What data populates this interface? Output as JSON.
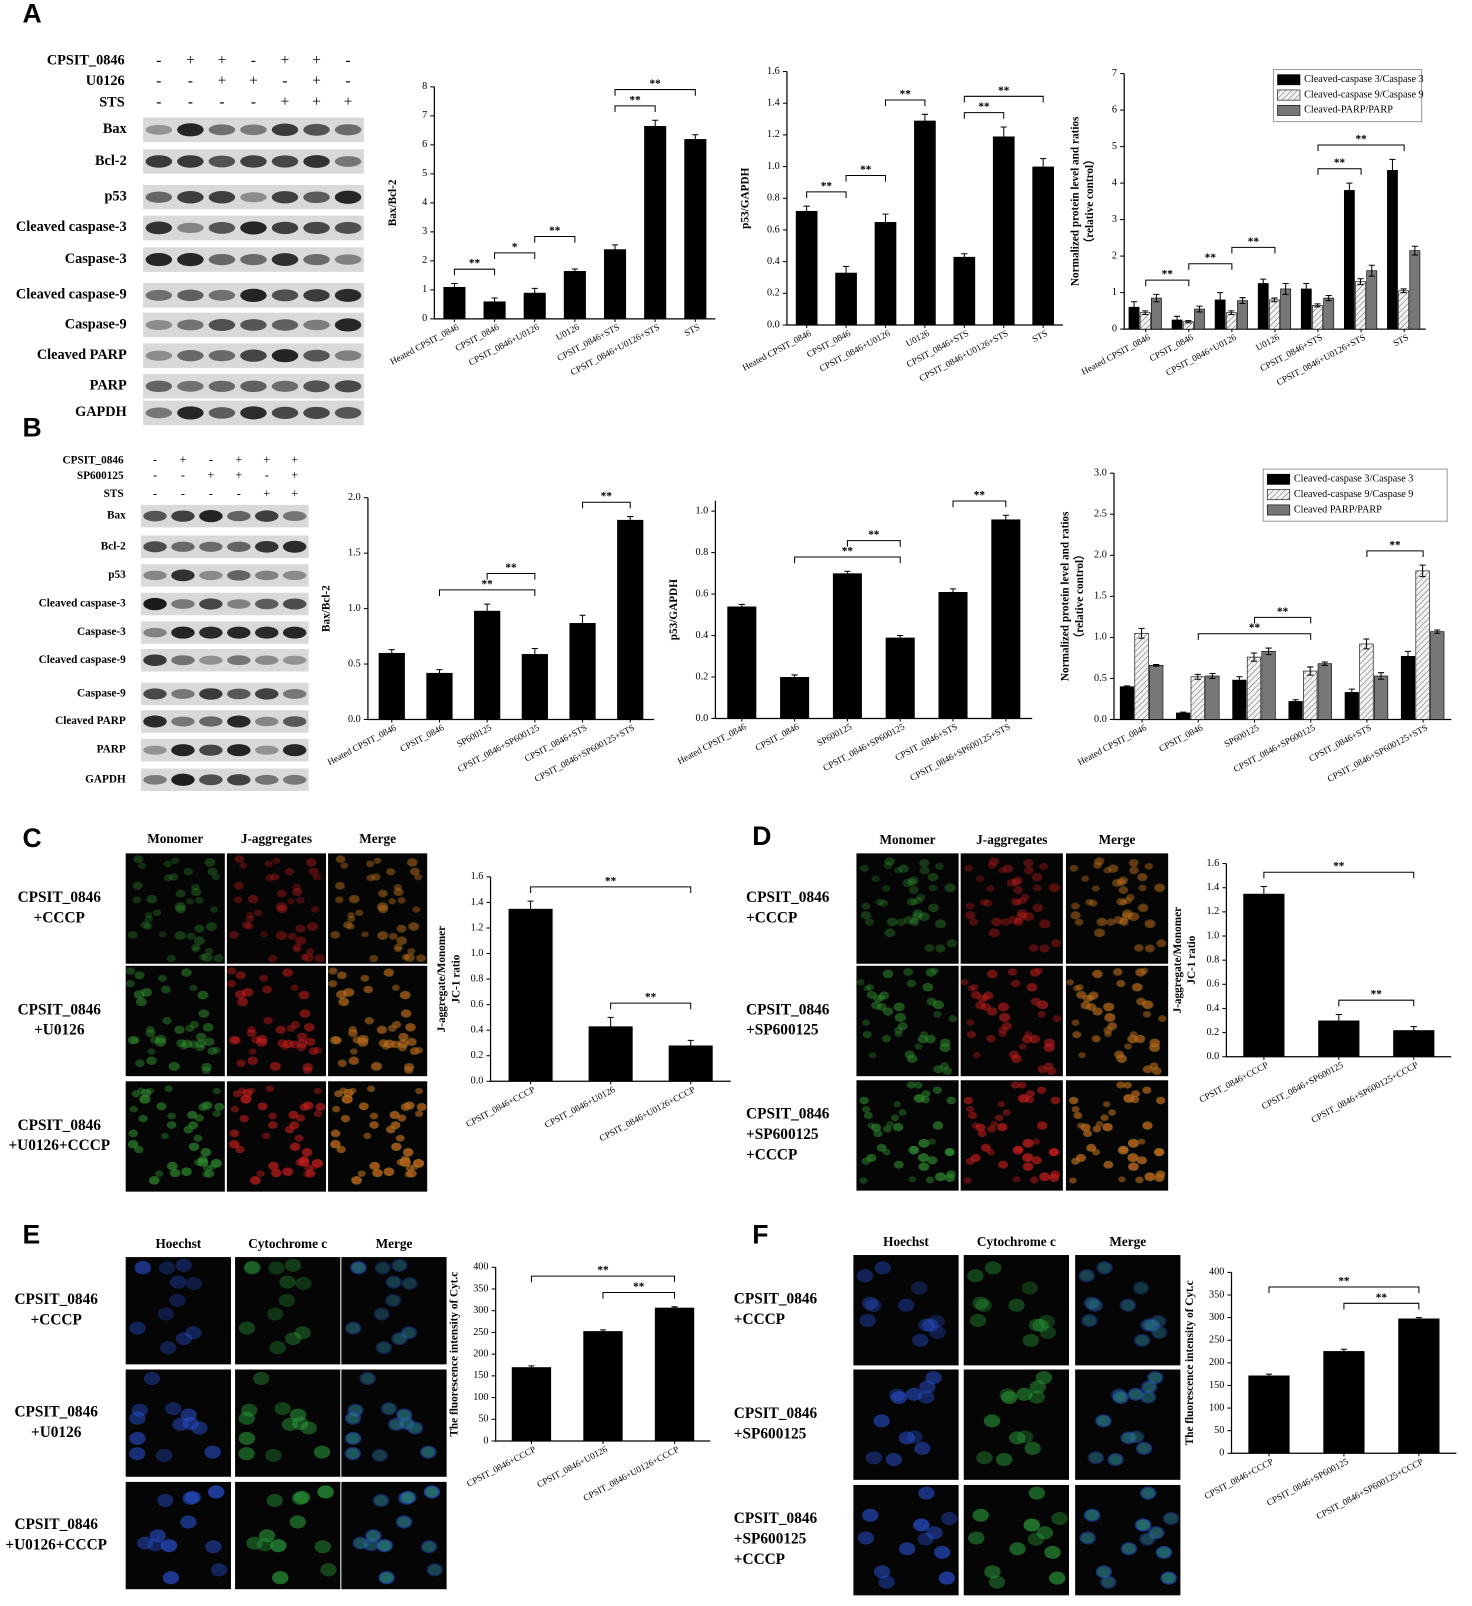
{
  "panels": [
    "A",
    "B",
    "C",
    "D",
    "E",
    "F"
  ],
  "blots": [
    {
      "treatments": [
        {
          "name": "CPSIT_0846",
          "marks": [
            "-",
            "+",
            "+",
            "-",
            "+",
            "+",
            "-"
          ]
        },
        {
          "name": "U0126",
          "marks": [
            "-",
            "-",
            "+",
            "+",
            "-",
            "+",
            "-"
          ]
        },
        {
          "name": "STS",
          "marks": [
            "-",
            "-",
            "-",
            "-",
            "+",
            "+",
            "+"
          ]
        }
      ],
      "rows": [
        "Bax",
        "Bcl-2",
        "p53",
        "Cleaved caspase-3",
        "Caspase-3",
        "Cleaved caspase-9",
        "Caspase-9",
        "Cleaved PARP",
        "PARP",
        "GAPDH"
      ]
    },
    {
      "treatments": [
        {
          "name": "CPSIT_0846",
          "marks": [
            "-",
            "+",
            "-",
            "+",
            "+",
            "+"
          ]
        },
        {
          "name": "SP600125",
          "marks": [
            "-",
            "-",
            "+",
            "+",
            "-",
            "+"
          ]
        },
        {
          "name": "STS",
          "marks": [
            "-",
            "-",
            "-",
            "-",
            "+",
            "+"
          ]
        }
      ],
      "rows": [
        "Bax",
        "Bcl-2",
        "p53",
        "Cleaved caspase-3",
        "Caspase-3",
        "Cleaved caspase-9",
        "Caspase-9",
        "Cleaved PARP",
        "PARP",
        "GAPDH"
      ]
    }
  ],
  "micrographs": [
    {
      "columns": [
        "Monomer",
        "J-aggregates",
        "Merge"
      ],
      "rows": [
        [
          "CPSIT_0846",
          "+CCCP"
        ],
        [
          "CPSIT_0846",
          "+U0126"
        ],
        [
          "CPSIT_0846",
          "+U0126+CCCP"
        ]
      ]
    },
    {
      "columns": [
        "Monomer",
        "J-aggregates",
        "Merge"
      ],
      "rows": [
        [
          "CPSIT_0846",
          "+CCCP"
        ],
        [
          "CPSIT_0846",
          "+SP600125"
        ],
        [
          "CPSIT_0846",
          "+SP600125",
          "+CCCP"
        ]
      ]
    },
    {
      "columns": [
        "Hoechst",
        "Cytochrome c",
        "Merge"
      ],
      "rows": [
        [
          "CPSIT_0846",
          "+CCCP"
        ],
        [
          "CPSIT_0846",
          "+U0126"
        ],
        [
          "CPSIT_0846",
          "+U0126+CCCP"
        ]
      ]
    },
    {
      "columns": [
        "Hoechst",
        "Cytochrome c",
        "Merge"
      ],
      "rows": [
        [
          "CPSIT_0846",
          "+CCCP"
        ],
        [
          "CPSIT_0846",
          "+SP600125"
        ],
        [
          "CPSIT_0846",
          "+SP600125",
          "+CCCP"
        ]
      ]
    }
  ],
  "chart_data": [
    {
      "type": "bar",
      "y_label": [
        "Bax/Bcl-2"
      ],
      "categories": [
        "Heated CPSIT_0846",
        "CPSIT_0846",
        "CPSIT_0846+U0126",
        "U0126",
        "CPSIT_0846+STS",
        "CPSIT_0846+U0126+STS",
        "STS"
      ],
      "values": [
        1.1,
        0.6,
        0.9,
        1.65,
        2.4,
        6.65,
        6.2
      ],
      "errors": [
        0.12,
        0.12,
        0.15,
        0.07,
        0.15,
        0.2,
        0.15
      ],
      "color": "#000000",
      "ylim": [
        0,
        8
      ],
      "yticks": [
        0,
        1,
        2,
        3,
        4,
        5,
        6,
        7,
        8
      ],
      "annotations": [
        {
          "text": "**",
          "from": 0,
          "to": 1
        },
        {
          "text": "*",
          "from": 1,
          "to": 2
        },
        {
          "text": "**",
          "from": 2,
          "to": 3
        },
        {
          "text": "**",
          "from": 4,
          "to": 5
        },
        {
          "text": "**",
          "from": 4,
          "to": 6
        }
      ]
    },
    {
      "type": "bar",
      "y_label": [
        "p53/GAPDH"
      ],
      "categories": [
        "Heated CPSIT_0846",
        "CPSIT_0846",
        "CPSIT_0846+U0126",
        "U0126",
        "CPSIT_0846+STS",
        "CPSIT_0846+U0126+STS",
        "STS"
      ],
      "values": [
        0.72,
        0.33,
        0.65,
        1.29,
        0.43,
        1.19,
        1.0
      ],
      "errors": [
        0.03,
        0.04,
        0.05,
        0.04,
        0.02,
        0.06,
        0.05
      ],
      "color": "#000000",
      "ylim": [
        0,
        1.6
      ],
      "yticks": [
        {
          "value": 0,
          "label": "0.0"
        },
        0.2,
        0.4,
        0.6,
        0.8,
        {
          "value": 1,
          "label": "1.0"
        },
        1.2,
        1.4,
        1.6
      ],
      "annotations": [
        {
          "text": "**",
          "from": 0,
          "to": 1
        },
        {
          "text": "**",
          "from": 1,
          "to": 2
        },
        {
          "text": "**",
          "from": 2,
          "to": 3
        },
        {
          "text": "**",
          "from": 4,
          "to": 5
        },
        {
          "text": "**",
          "from": 4,
          "to": 6
        }
      ]
    },
    {
      "type": "bar",
      "y_label": [
        "Normalized protein level and ratios",
        "（relative control）"
      ],
      "categories": [
        "Heated CPSIT_0846",
        "CPSIT_0846",
        "CPSIT_0846+U0126",
        "U0126",
        "CPSIT_0846+STS",
        "CPSIT_0846+U0126+STS",
        "STS"
      ],
      "series": [
        {
          "name": "Cleaved-caspase 3/Caspase 3",
          "color": "#000000",
          "values": [
            0.6,
            0.25,
            0.8,
            1.25,
            1.1,
            3.8,
            4.35
          ],
          "errors": [
            0.15,
            0.1,
            0.2,
            0.12,
            0.15,
            0.2,
            0.3
          ]
        },
        {
          "name": "Cleaved-caspase 9/Caspase 9",
          "color": "#e6e6e6",
          "hatch": true,
          "values": [
            0.45,
            0.2,
            0.45,
            0.8,
            0.65,
            1.3,
            1.05
          ],
          "errors": [
            0.05,
            0.03,
            0.05,
            0.05,
            0.04,
            0.08,
            0.05
          ]
        },
        {
          "name": "Cleaved-PARP/PARP",
          "color": "#777777",
          "values": [
            0.85,
            0.55,
            0.78,
            1.1,
            0.85,
            1.6,
            2.15
          ],
          "errors": [
            0.1,
            0.08,
            0.08,
            0.15,
            0.07,
            0.15,
            0.12
          ]
        }
      ],
      "legend": "upper right",
      "ylim": [
        0,
        7
      ],
      "yticks": [
        0,
        1,
        2,
        3,
        4,
        5,
        6,
        7
      ],
      "annotations": [
        {
          "text": "**",
          "from": 0,
          "to": 1
        },
        {
          "text": "**",
          "from": 1,
          "to": 2
        },
        {
          "text": "**",
          "from": 2,
          "to": 3
        },
        {
          "text": "**",
          "from": 4,
          "to": 5
        },
        {
          "text": "**",
          "from": 4,
          "to": 6
        }
      ]
    },
    {
      "type": "bar",
      "y_label": [
        "Bax/Bcl-2"
      ],
      "categories": [
        "Heated CPSIT_0846",
        "CPSIT_0846",
        "SP600125",
        "CPSIT_0846+SP600125",
        "CPSIT_0846+STS",
        "CPSIT_0846+SP600125+STS"
      ],
      "values": [
        0.6,
        0.42,
        0.98,
        0.59,
        0.87,
        1.8
      ],
      "errors": [
        0.03,
        0.03,
        0.06,
        0.05,
        0.07,
        0.03
      ],
      "color": "#000000",
      "ylim": [
        0,
        2
      ],
      "yticks": [
        {
          "value": 0,
          "label": "0.0"
        },
        0.5,
        {
          "value": 1,
          "label": "1.0"
        },
        1.5,
        {
          "value": 2,
          "label": "2.0"
        }
      ],
      "annotations": [
        {
          "text": "**",
          "from": 1,
          "to": 3
        },
        {
          "text": "**",
          "from": 2,
          "to": 3
        },
        {
          "text": "**",
          "from": 4,
          "to": 5
        }
      ]
    },
    {
      "type": "bar",
      "y_label": [
        "p53/GAPDH"
      ],
      "categories": [
        "Heated CPSIT_0846",
        "CPSIT_0846",
        "SP600125",
        "CPSIT_0846+SP600125",
        "CPSIT_0846+STS",
        "CPSIT_0846+SP600125+STS"
      ],
      "values": [
        0.54,
        0.2,
        0.7,
        0.39,
        0.61,
        0.96
      ],
      "errors": [
        0.01,
        0.01,
        0.01,
        0.01,
        0.015,
        0.02
      ],
      "color": "#000000",
      "ylim": [
        0,
        1.05
      ],
      "yticks": [
        {
          "value": 0,
          "label": "0.0"
        },
        0.2,
        0.4,
        0.6,
        0.8,
        {
          "value": 1,
          "label": "1.0"
        }
      ],
      "annotations": [
        {
          "text": "**",
          "from": 1,
          "to": 3
        },
        {
          "text": "**",
          "from": 2,
          "to": 3
        },
        {
          "text": "**",
          "from": 4,
          "to": 5
        }
      ]
    },
    {
      "type": "bar",
      "y_label": [
        "Normalized protein level and ratios",
        "（relative control）"
      ],
      "categories": [
        "Heated CPSIT_0846",
        "CPSIT_0846",
        "SP600125",
        "CPSIT_0846+SP600125",
        "CPSIT_0846+STS",
        "CPSIT_0846+SP600125+STS"
      ],
      "series": [
        {
          "name": "Cleaved-caspase 3/Caspase 3",
          "color": "#000000",
          "values": [
            0.4,
            0.08,
            0.48,
            0.22,
            0.33,
            0.77
          ],
          "errors": [
            0.01,
            0.01,
            0.04,
            0.02,
            0.04,
            0.06
          ]
        },
        {
          "name": "Cleaved-caspase 9/Caspase 9",
          "color": "#e6e6e6",
          "hatch": true,
          "values": [
            1.05,
            0.52,
            0.76,
            0.59,
            0.92,
            1.81
          ],
          "errors": [
            0.06,
            0.03,
            0.05,
            0.05,
            0.06,
            0.07
          ]
        },
        {
          "name": "Cleaved PARP/PARP",
          "color": "#777777",
          "values": [
            0.66,
            0.53,
            0.83,
            0.68,
            0.53,
            1.07
          ],
          "errors": [
            0.01,
            0.03,
            0.04,
            0.02,
            0.04,
            0.02
          ]
        }
      ],
      "legend": "upper right",
      "ylim": [
        0,
        3
      ],
      "yticks": [
        {
          "value": 0,
          "label": "0.0"
        },
        0.5,
        {
          "value": 1,
          "label": "1.0"
        },
        1.5,
        {
          "value": 2,
          "label": "2.0"
        },
        2.5,
        {
          "value": 3,
          "label": "3.0"
        }
      ],
      "annotations": [
        {
          "text": "**",
          "from": 1,
          "to": 3
        },
        {
          "text": "**",
          "from": 2,
          "to": 3
        },
        {
          "text": "**",
          "from": 4,
          "to": 5
        }
      ]
    },
    {
      "type": "bar",
      "y_label": [
        "J-aggregate/Monomer",
        "JC-1 ratio"
      ],
      "categories": [
        "CPSIT_0846+CCCP",
        "CPSIT_0846+U0126",
        "CPSIT_0846+U0126+CCCP"
      ],
      "values": [
        1.35,
        0.43,
        0.28
      ],
      "errors": [
        0.06,
        0.07,
        0.04
      ],
      "color": "#000000",
      "ylim": [
        0,
        1.6
      ],
      "yticks": [
        {
          "value": 0,
          "label": "0.0"
        },
        0.2,
        0.4,
        0.6,
        0.8,
        {
          "value": 1,
          "label": "1.0"
        },
        1.2,
        1.4,
        1.6
      ],
      "annotations": [
        {
          "text": "**",
          "from": 1,
          "to": 2
        },
        {
          "text": "**",
          "from": 0,
          "to": 2
        }
      ]
    },
    {
      "type": "bar",
      "y_label": [
        "J-aggregate/Monomer",
        "JC-1 ratio"
      ],
      "categories": [
        "CPSIT_0846+CCCP",
        "CPSIT_0846+SP600125",
        "CPSIT_0846+SP600125+CCCP"
      ],
      "values": [
        1.35,
        0.3,
        0.22
      ],
      "errors": [
        0.06,
        0.05,
        0.03
      ],
      "color": "#000000",
      "ylim": [
        0,
        1.6
      ],
      "yticks": [
        {
          "value": 0,
          "label": "0.0"
        },
        0.2,
        0.4,
        0.6,
        0.8,
        {
          "value": 1,
          "label": "1.0"
        },
        1.2,
        1.4,
        1.6
      ],
      "annotations": [
        {
          "text": "**",
          "from": 1,
          "to": 2
        },
        {
          "text": "**",
          "from": 0,
          "to": 2
        }
      ]
    },
    {
      "type": "bar",
      "y_label": [
        "The fluorescence intensity of Cyt.c"
      ],
      "categories": [
        "CPSIT_0846+CCCP",
        "CPSIT_0846+U0126",
        "CPSIT_0846+U0126+CCCP"
      ],
      "values": [
        170,
        253,
        307
      ],
      "errors": [
        3,
        3,
        2
      ],
      "color": "#000000",
      "ylim": [
        0,
        400
      ],
      "yticks": [
        0,
        50,
        100,
        150,
        200,
        250,
        300,
        350,
        400
      ],
      "annotations": [
        {
          "text": "**",
          "from": 1,
          "to": 2
        },
        {
          "text": "**",
          "from": 0,
          "to": 2
        }
      ]
    },
    {
      "type": "bar",
      "y_label": [
        "The fluorescence intensity of Cyt.c"
      ],
      "categories": [
        "CPSIT_0846+CCCP",
        "CPSIT_0846+SP600125",
        "CPSIT_0846+SP600125+CCCP"
      ],
      "values": [
        172,
        226,
        298
      ],
      "errors": [
        3,
        4,
        2
      ],
      "color": "#000000",
      "ylim": [
        0,
        400
      ],
      "yticks": [
        0,
        50,
        100,
        150,
        200,
        250,
        300,
        350,
        400
      ],
      "annotations": [
        {
          "text": "**",
          "from": 1,
          "to": 2
        },
        {
          "text": "**",
          "from": 0,
          "to": 2
        }
      ]
    }
  ]
}
